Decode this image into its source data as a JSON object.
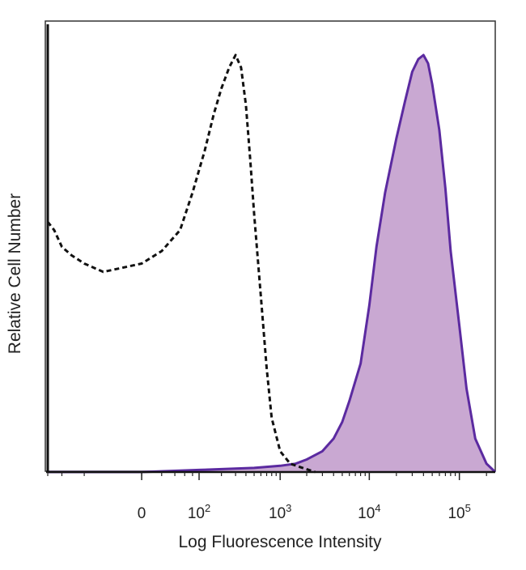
{
  "chart_data": {
    "type": "area",
    "title": "",
    "xlabel": "Log Fluorescence Intensity",
    "ylabel": "Relative Cell Number",
    "x_scale": "biexponential",
    "xlim": [
      -300,
      250000
    ],
    "ylim": [
      0,
      100
    ],
    "grid": false,
    "legend": "none",
    "x_ticks": [
      {
        "value": 0,
        "label": "0"
      },
      {
        "value": 100,
        "base": "10",
        "exp": "2"
      },
      {
        "value": 1000,
        "base": "10",
        "exp": "3"
      },
      {
        "value": 10000,
        "base": "10",
        "exp": "4"
      },
      {
        "value": 100000,
        "base": "10",
        "exp": "5"
      }
    ],
    "series": [
      {
        "style": "dashed-outline",
        "color": "#111111",
        "x": [
          -300,
          -250,
          -200,
          -150,
          -100,
          -50,
          0,
          20,
          50,
          80,
          120,
          160,
          200,
          250,
          300,
          350,
          400,
          450,
          500,
          600,
          700,
          800,
          1000,
          1300,
          1800,
          2500
        ],
        "y": [
          60,
          58,
          54,
          52,
          50,
          48,
          50,
          53,
          58,
          67,
          77,
          86,
          92,
          97,
          100,
          97,
          88,
          75,
          62,
          42,
          25,
          13,
          5,
          2,
          1,
          0
        ]
      },
      {
        "style": "filled",
        "color": "#5b2aa0",
        "fill": "#c9a8d2",
        "x": [
          -300,
          0,
          100,
          500,
          1000,
          1500,
          2000,
          3000,
          4000,
          5000,
          6000,
          8000,
          10000,
          12000,
          15000,
          20000,
          25000,
          30000,
          35000,
          40000,
          45000,
          50000,
          60000,
          70000,
          80000,
          100000,
          120000,
          150000,
          200000,
          250000
        ],
        "y": [
          0,
          0,
          0.5,
          1,
          1.5,
          2,
          3,
          5,
          8,
          12,
          17,
          26,
          40,
          54,
          67,
          80,
          89,
          96,
          99,
          100,
          98,
          93,
          82,
          68,
          53,
          35,
          20,
          8,
          2,
          0
        ]
      }
    ]
  }
}
